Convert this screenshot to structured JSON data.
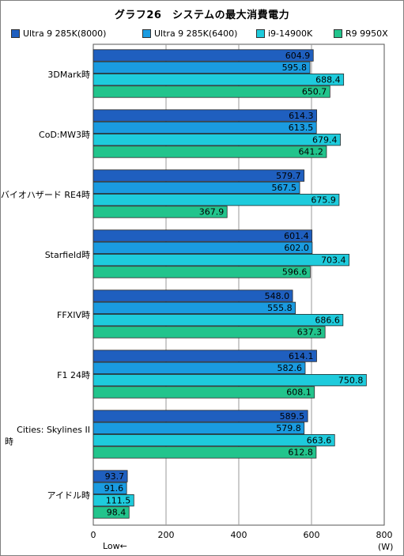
{
  "chart_data": {
    "type": "bar",
    "orientation": "horizontal",
    "title": "グラフ26　システムの最大消費電力",
    "categories": [
      "3DMark時",
      "CoD:MW3時",
      "バイオハザード RE4時",
      "Starfield時",
      "FFXIV時",
      "F1 24時",
      "Cities: Skylines II 時",
      "アイドル時"
    ],
    "series": [
      {
        "name": "Ultra 9 285K(8000)",
        "color": "#1f5fbf",
        "values": [
          604.9,
          614.3,
          579.7,
          601.4,
          548.0,
          614.1,
          589.5,
          93.7
        ]
      },
      {
        "name": "Ultra 9 285K(6400)",
        "color": "#1a9be0",
        "values": [
          595.8,
          613.5,
          567.5,
          602.0,
          555.8,
          582.6,
          579.8,
          91.6
        ]
      },
      {
        "name": "i9-14900K",
        "color": "#1ecbdc",
        "values": [
          688.4,
          679.4,
          675.9,
          703.4,
          686.6,
          750.8,
          663.6,
          111.5
        ]
      },
      {
        "name": "R9 9950X",
        "color": "#22c48c",
        "values": [
          650.7,
          641.2,
          367.9,
          596.6,
          637.3,
          608.1,
          612.8,
          98.4
        ]
      }
    ],
    "xlim": [
      0,
      800
    ],
    "xticks": [
      0,
      200,
      400,
      600,
      800
    ],
    "xlabel": "(W)",
    "note": "Low←",
    "grid": true,
    "legend_position": "top"
  }
}
